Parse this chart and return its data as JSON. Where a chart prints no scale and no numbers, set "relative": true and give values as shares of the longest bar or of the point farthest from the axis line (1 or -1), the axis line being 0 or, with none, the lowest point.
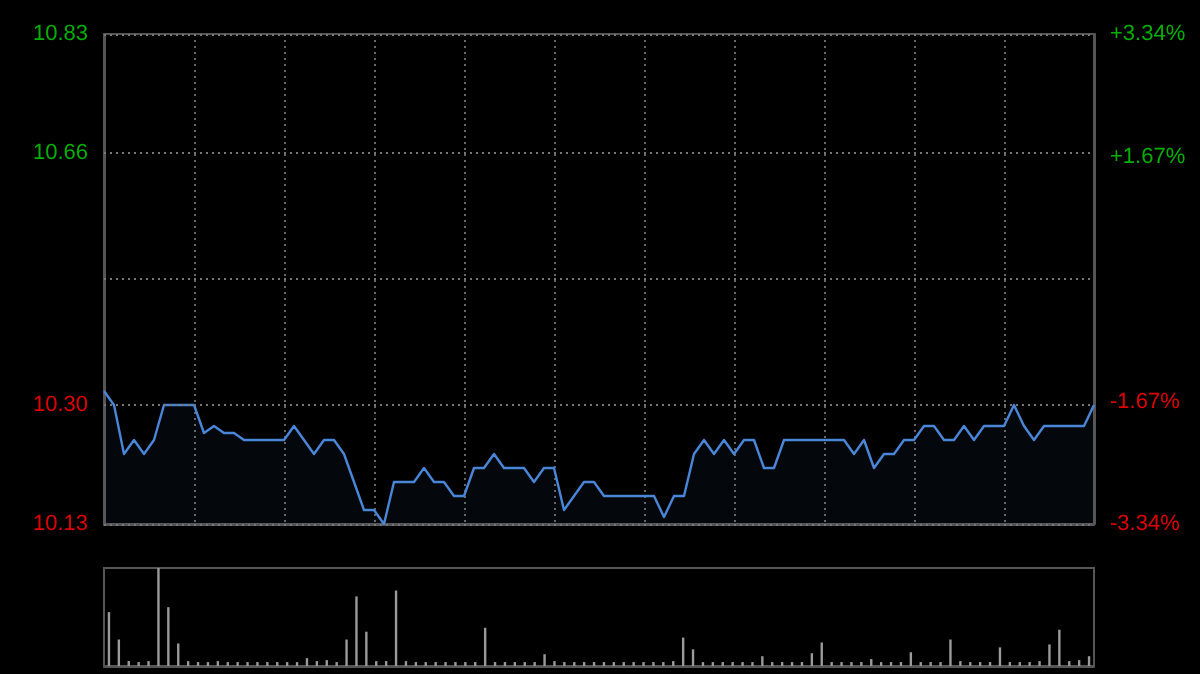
{
  "chart_data": [
    {
      "type": "area",
      "categories": [
        null,
        null,
        null,
        null,
        null,
        null,
        null,
        null,
        null,
        null,
        null,
        null,
        null,
        null,
        null,
        null,
        null,
        null,
        null,
        null,
        null,
        null,
        null,
        null,
        null,
        null,
        null,
        null,
        null,
        null,
        null,
        null,
        null,
        null,
        null,
        null,
        null,
        null,
        null,
        null,
        null,
        null,
        null,
        null,
        null,
        null,
        null,
        null,
        null,
        null,
        null,
        null,
        null,
        null,
        null,
        null,
        null,
        null,
        null,
        null,
        null,
        null,
        null,
        null,
        null,
        null,
        null,
        null,
        null,
        null,
        null,
        null,
        null,
        null,
        null,
        null,
        null,
        null,
        null,
        null,
        null,
        null,
        null,
        null,
        null,
        null,
        null,
        null,
        null,
        null,
        null,
        null,
        null,
        null,
        null,
        null,
        null,
        null,
        null,
        null
      ],
      "series": [
        {
          "color": "#4a86d8",
          "values": [
            10.32,
            10.3,
            10.23,
            10.25,
            10.23,
            10.25,
            10.3,
            10.3,
            10.3,
            10.3,
            10.26,
            10.27,
            10.26,
            10.26,
            10.25,
            10.25,
            10.25,
            10.25,
            10.25,
            10.27,
            10.25,
            10.23,
            10.25,
            10.25,
            10.23,
            10.19,
            10.15,
            10.15,
            10.13,
            10.19,
            10.19,
            10.19,
            10.21,
            10.19,
            10.19,
            10.17,
            10.17,
            10.21,
            10.21,
            10.23,
            10.21,
            10.21,
            10.21,
            10.19,
            10.21,
            10.21,
            10.15,
            10.17,
            10.19,
            10.19,
            10.17,
            10.17,
            10.17,
            10.17,
            10.17,
            10.17,
            10.14,
            10.17,
            10.17,
            10.23,
            10.25,
            10.23,
            10.25,
            10.23,
            10.25,
            10.25,
            10.21,
            10.21,
            10.25,
            10.25,
            10.25,
            10.25,
            10.25,
            10.25,
            10.25,
            10.23,
            10.25,
            10.21,
            10.23,
            10.23,
            10.25,
            10.25,
            10.27,
            10.27,
            10.25,
            10.25,
            10.27,
            10.25,
            10.27,
            10.27,
            10.27,
            10.3,
            10.27,
            10.25,
            10.27,
            10.27,
            10.27,
            10.27,
            10.27,
            10.3
          ]
        }
      ],
      "ylim": [
        10.13,
        10.83
      ],
      "yticks": [
        10.13,
        {
          "value": 10.3,
          "label": "10.30"
        },
        {
          "value": 10.48,
          "label": null
        },
        10.66,
        10.83
      ],
      "y2lim": [
        -3.34,
        3.34
      ],
      "y2ticks": [
        {
          "value": -3.34,
          "label": "-3.34%"
        },
        {
          "value": -1.67,
          "label": "-1.67%"
        },
        {
          "value": 0,
          "label": null
        },
        {
          "value": 1.67,
          "label": "+1.67%"
        },
        {
          "value": 3.34,
          "label": "+3.34%"
        }
      ],
      "grid": true,
      "tick_labels": "y"
    },
    {
      "type": "bar",
      "relative": true,
      "categories": [
        null,
        null,
        null,
        null,
        null,
        null,
        null,
        null,
        null,
        null,
        null,
        null,
        null,
        null,
        null,
        null,
        null,
        null,
        null,
        null,
        null,
        null,
        null,
        null,
        null,
        null,
        null,
        null,
        null,
        null,
        null,
        null,
        null,
        null,
        null,
        null,
        null,
        null,
        null,
        null,
        null,
        null,
        null,
        null,
        null,
        null,
        null,
        null,
        null,
        null,
        null,
        null,
        null,
        null,
        null,
        null,
        null,
        null,
        null,
        null,
        null,
        null,
        null,
        null,
        null,
        null,
        null,
        null,
        null,
        null,
        null,
        null,
        null,
        null,
        null,
        null,
        null,
        null,
        null,
        null,
        null,
        null,
        null,
        null,
        null,
        null,
        null,
        null,
        null,
        null,
        null,
        null,
        null,
        null,
        null,
        null,
        null,
        null,
        null,
        null
      ],
      "color": "#9a9a9a",
      "values": [
        0.55,
        0.27,
        0.05,
        0.04,
        0.05,
        1.0,
        0.6,
        0.23,
        0.05,
        0.04,
        0.04,
        0.05,
        0.04,
        0.04,
        0.04,
        0.04,
        0.04,
        0.04,
        0.04,
        0.04,
        0.08,
        0.05,
        0.06,
        0.04,
        0.27,
        0.71,
        0.35,
        0.05,
        0.05,
        0.77,
        0.05,
        0.04,
        0.04,
        0.04,
        0.04,
        0.04,
        0.04,
        0.04,
        0.39,
        0.04,
        0.04,
        0.04,
        0.04,
        0.04,
        0.12,
        0.05,
        0.04,
        0.04,
        0.04,
        0.04,
        0.04,
        0.04,
        0.04,
        0.04,
        0.04,
        0.04,
        0.04,
        0.05,
        0.29,
        0.17,
        0.04,
        0.04,
        0.04,
        0.04,
        0.04,
        0.04,
        0.1,
        0.04,
        0.04,
        0.04,
        0.04,
        0.13,
        0.24,
        0.04,
        0.04,
        0.04,
        0.04,
        0.07,
        0.04,
        0.04,
        0.04,
        0.14,
        0.04,
        0.04,
        0.04,
        0.27,
        0.05,
        0.04,
        0.04,
        0.04,
        0.19,
        0.04,
        0.04,
        0.04,
        0.05,
        0.22,
        0.37,
        0.05,
        0.06,
        0.1
      ],
      "tick_labels": false
    }
  ]
}
